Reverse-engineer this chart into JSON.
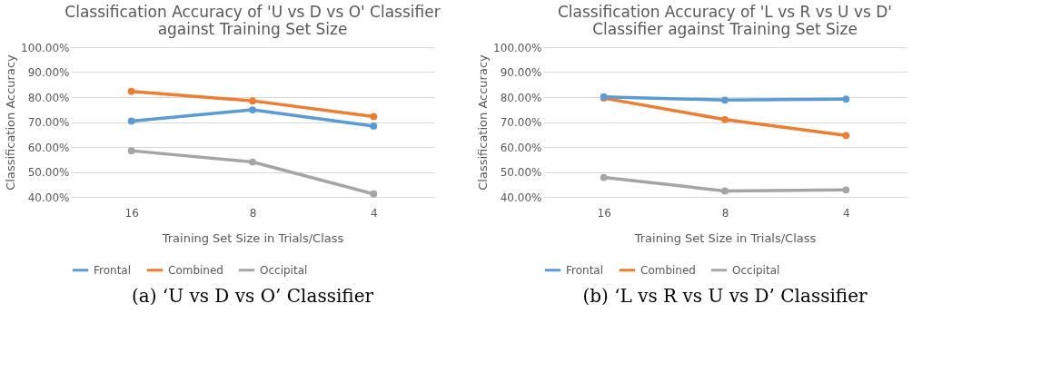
{
  "chart_data": [
    {
      "type": "line",
      "title": "Classification Accuracy of 'U vs D vs O' Classifier against Training Set Size",
      "xlabel": "Training Set Size in Trials/Class",
      "ylabel": "Classification Accuracy",
      "categories": [
        "16",
        "8",
        "4"
      ],
      "series": [
        {
          "name": "Frontal",
          "color": "#5b9bd5",
          "values": [
            70.4,
            74.9,
            68.4
          ]
        },
        {
          "name": "Combined",
          "color": "#ed7d31",
          "values": [
            82.3,
            78.5,
            72.2
          ]
        },
        {
          "name": "Occipital",
          "color": "#a5a5a5",
          "values": [
            58.5,
            54.0,
            41.2
          ]
        }
      ],
      "ylim": [
        40,
        100
      ],
      "yticks": [
        {
          "value": 40,
          "label": "40.00%"
        },
        {
          "value": 50,
          "label": "50.00%"
        },
        {
          "value": 60,
          "label": "60.00%"
        },
        {
          "value": 70,
          "label": "70.00%"
        },
        {
          "value": 80,
          "label": "80.00%"
        },
        {
          "value": 90,
          "label": "90.00%"
        },
        {
          "value": 100,
          "label": "100.00%"
        }
      ],
      "grid": "y",
      "legend": "bottom",
      "marker": "circle",
      "line_style": "solid",
      "annotations": [
        "(a) ‘U vs D vs O’ Classifier"
      ]
    },
    {
      "type": "line",
      "title": "Classification Accuracy of 'L vs R vs U vs D' Classifier against Training Set Size",
      "xlabel": "Training Set Size in Trials/Class",
      "ylabel": "Classification Accuracy",
      "categories": [
        "16",
        "8",
        "4"
      ],
      "series": [
        {
          "name": "Frontal",
          "color": "#5b9bd5",
          "values": [
            80.1,
            78.8,
            79.2
          ]
        },
        {
          "name": "Combined",
          "color": "#ed7d31",
          "values": [
            79.6,
            71.0,
            64.6
          ]
        },
        {
          "name": "Occipital",
          "color": "#a5a5a5",
          "values": [
            47.8,
            42.4,
            42.8
          ]
        }
      ],
      "ylim": [
        40,
        100
      ],
      "yticks": [
        {
          "value": 40,
          "label": "40.00%"
        },
        {
          "value": 50,
          "label": "50.00%"
        },
        {
          "value": 60,
          "label": "60.00%"
        },
        {
          "value": 70,
          "label": "70.00%"
        },
        {
          "value": 80,
          "label": "80.00%"
        },
        {
          "value": 90,
          "label": "90.00%"
        },
        {
          "value": 100,
          "label": "100.00%"
        }
      ],
      "grid": "y",
      "legend": "bottom",
      "marker": "circle",
      "line_style": "solid",
      "annotations": [
        "(b) ‘L vs R vs U vs D’ Classifier"
      ]
    }
  ]
}
